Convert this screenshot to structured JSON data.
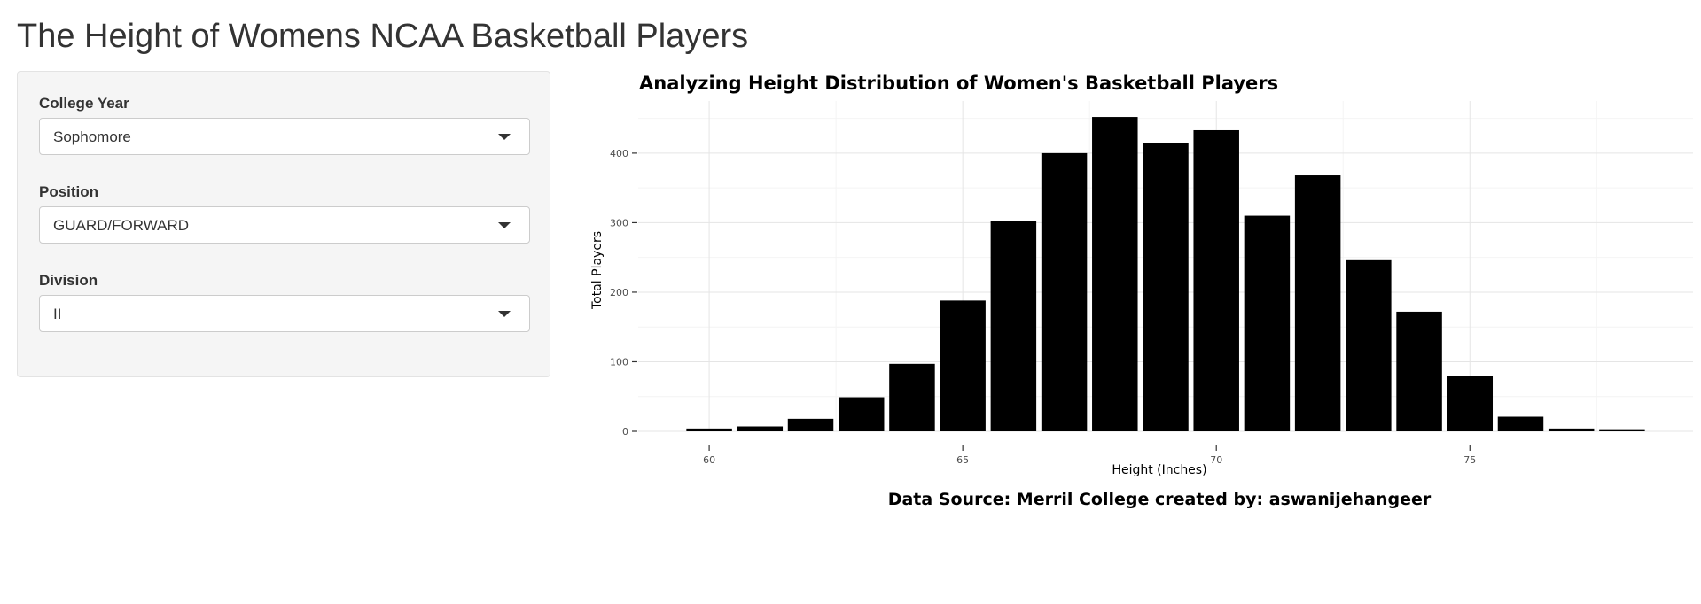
{
  "app": {
    "title": "The Height of Womens NCAA Basketball Players"
  },
  "sidebar": {
    "fields": [
      {
        "label": "College Year",
        "value": "Sophomore"
      },
      {
        "label": "Position",
        "value": "GUARD/FORWARD"
      },
      {
        "label": "Division",
        "value": "II"
      }
    ]
  },
  "chart_data": {
    "type": "bar",
    "title": "Analyzing Height Distribution of Women's Basketball Players",
    "xlabel": "Height (Inches)",
    "ylabel": "Total Players",
    "caption": "Data Source: Merril College created by: aswanijehangeer",
    "x": [
      60,
      61,
      62,
      63,
      64,
      65,
      66,
      67,
      68,
      69,
      70,
      71,
      72,
      73,
      74,
      75,
      76,
      77,
      78
    ],
    "values": [
      4,
      7,
      18,
      49,
      97,
      188,
      303,
      400,
      452,
      415,
      433,
      310,
      368,
      246,
      172,
      80,
      21,
      4,
      3
    ],
    "xticks": [
      "60",
      "65",
      "70",
      "75"
    ],
    "yticks": [
      "0",
      "100",
      "200",
      "300",
      "400"
    ],
    "xlim": [
      58.6,
      79.4
    ],
    "ylim": [
      0,
      475
    ],
    "grid": true,
    "bar_color": "#000000"
  }
}
